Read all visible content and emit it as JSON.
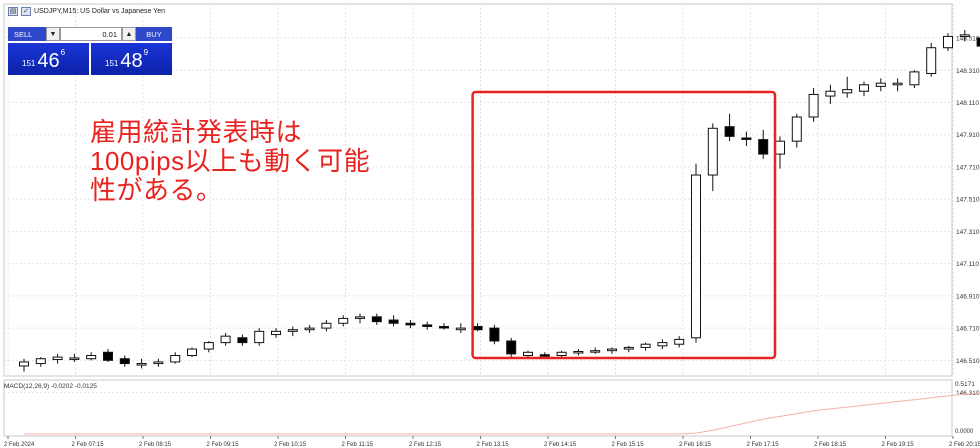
{
  "window": {
    "title": "USDJPY,M15:  US Dollar vs Japanese Yen"
  },
  "trade_panel": {
    "sell_label": "SELL",
    "buy_label": "BUY",
    "lot_value": "0.01",
    "dropdown_glyph": "▼",
    "up_glyph": "▲",
    "sell_price_prefix": "151",
    "sell_price_big": "46",
    "sell_price_sup": "6",
    "buy_price_prefix": "151",
    "buy_price_big": "48",
    "buy_price_sup": "9"
  },
  "annotation": {
    "text": "雇用統計発表時は\n100pips以上も動く可能\n性がある。",
    "color": "#e8231f"
  },
  "indicator": {
    "label": "MACD(12,26,9) -0.0202 -0.0125",
    "value_label": "0.5171",
    "zero_label": "0.0000"
  },
  "colors": {
    "bull_candle": "#ffffff",
    "bear_candle": "#000000",
    "highlight_box": "#e8231f",
    "grid": "#e4e4e4",
    "macd_signal": "#f2b3a8",
    "sell_bg": "#2f48c9",
    "price_box_bg": "#1a35d8"
  },
  "chart_data": {
    "type": "candlestick",
    "symbol": "USDJPY",
    "timeframe": "M15",
    "ylim": [
      146.45,
      148.56
    ],
    "y_ticks": [
      "148.510",
      "148.310",
      "148.110",
      "147.910",
      "147.710",
      "147.510",
      "147.310",
      "147.110",
      "146.910",
      "146.710",
      "146.510",
      "146.310"
    ],
    "x_ticks": [
      "2 Feb 2024",
      "2 Feb 07:15",
      "2 Feb 08:15",
      "2 Feb 09:15",
      "2 Feb 10:15",
      "2 Feb 11:15",
      "2 Feb 12:15",
      "2 Feb 13:15",
      "2 Feb 14:15",
      "2 Feb 15:15",
      "2 Feb 16:15",
      "2 Feb 17:15",
      "2 Feb 18:15",
      "2 Feb 19:15",
      "2 Feb 20:15"
    ],
    "candles": [
      {
        "o": 146.475,
        "h": 146.52,
        "l": 146.44,
        "c": 146.5
      },
      {
        "o": 146.49,
        "h": 146.53,
        "l": 146.47,
        "c": 146.52
      },
      {
        "o": 146.515,
        "h": 146.55,
        "l": 146.49,
        "c": 146.53
      },
      {
        "o": 146.52,
        "h": 146.55,
        "l": 146.5,
        "c": 146.525
      },
      {
        "o": 146.52,
        "h": 146.56,
        "l": 146.51,
        "c": 146.54
      },
      {
        "o": 146.56,
        "h": 146.58,
        "l": 146.5,
        "c": 146.51
      },
      {
        "o": 146.52,
        "h": 146.54,
        "l": 146.47,
        "c": 146.49
      },
      {
        "o": 146.49,
        "h": 146.52,
        "l": 146.46,
        "c": 146.49
      },
      {
        "o": 146.49,
        "h": 146.52,
        "l": 146.47,
        "c": 146.5
      },
      {
        "o": 146.5,
        "h": 146.56,
        "l": 146.49,
        "c": 146.54
      },
      {
        "o": 146.54,
        "h": 146.59,
        "l": 146.53,
        "c": 146.58
      },
      {
        "o": 146.58,
        "h": 146.63,
        "l": 146.56,
        "c": 146.62
      },
      {
        "o": 146.62,
        "h": 146.68,
        "l": 146.6,
        "c": 146.66
      },
      {
        "o": 146.65,
        "h": 146.67,
        "l": 146.6,
        "c": 146.62
      },
      {
        "o": 146.62,
        "h": 146.71,
        "l": 146.6,
        "c": 146.69
      },
      {
        "o": 146.67,
        "h": 146.71,
        "l": 146.65,
        "c": 146.69
      },
      {
        "o": 146.69,
        "h": 146.72,
        "l": 146.66,
        "c": 146.7
      },
      {
        "o": 146.7,
        "h": 146.73,
        "l": 146.68,
        "c": 146.71
      },
      {
        "o": 146.71,
        "h": 146.76,
        "l": 146.69,
        "c": 146.74
      },
      {
        "o": 146.74,
        "h": 146.79,
        "l": 146.72,
        "c": 146.77
      },
      {
        "o": 146.77,
        "h": 146.8,
        "l": 146.74,
        "c": 146.78
      },
      {
        "o": 146.78,
        "h": 146.8,
        "l": 146.73,
        "c": 146.75
      },
      {
        "o": 146.76,
        "h": 146.79,
        "l": 146.72,
        "c": 146.74
      },
      {
        "o": 146.74,
        "h": 146.76,
        "l": 146.71,
        "c": 146.73
      },
      {
        "o": 146.73,
        "h": 146.75,
        "l": 146.7,
        "c": 146.72
      },
      {
        "o": 146.72,
        "h": 146.74,
        "l": 146.7,
        "c": 146.715
      },
      {
        "o": 146.7,
        "h": 146.74,
        "l": 146.68,
        "c": 146.71
      },
      {
        "o": 146.72,
        "h": 146.74,
        "l": 146.69,
        "c": 146.7
      },
      {
        "o": 146.71,
        "h": 146.73,
        "l": 146.61,
        "c": 146.63
      },
      {
        "o": 146.63,
        "h": 146.65,
        "l": 146.53,
        "c": 146.55
      },
      {
        "o": 146.54,
        "h": 146.57,
        "l": 146.52,
        "c": 146.56
      },
      {
        "o": 146.545,
        "h": 146.56,
        "l": 146.52,
        "c": 146.535
      },
      {
        "o": 146.54,
        "h": 146.57,
        "l": 146.52,
        "c": 146.56
      },
      {
        "o": 146.56,
        "h": 146.58,
        "l": 146.54,
        "c": 146.565
      },
      {
        "o": 146.565,
        "h": 146.59,
        "l": 146.55,
        "c": 146.57
      },
      {
        "o": 146.57,
        "h": 146.59,
        "l": 146.55,
        "c": 146.58
      },
      {
        "o": 146.58,
        "h": 146.6,
        "l": 146.56,
        "c": 146.59
      },
      {
        "o": 146.59,
        "h": 146.62,
        "l": 146.57,
        "c": 146.61
      },
      {
        "o": 146.6,
        "h": 146.64,
        "l": 146.58,
        "c": 146.62
      },
      {
        "o": 146.61,
        "h": 146.66,
        "l": 146.59,
        "c": 146.64
      },
      {
        "o": 146.65,
        "h": 147.73,
        "l": 146.62,
        "c": 147.66
      },
      {
        "o": 147.66,
        "h": 147.98,
        "l": 147.56,
        "c": 147.95
      },
      {
        "o": 147.96,
        "h": 148.04,
        "l": 147.87,
        "c": 147.9
      },
      {
        "o": 147.89,
        "h": 147.93,
        "l": 147.84,
        "c": 147.885
      },
      {
        "o": 147.88,
        "h": 147.94,
        "l": 147.76,
        "c": 147.79
      },
      {
        "o": 147.79,
        "h": 147.9,
        "l": 147.7,
        "c": 147.87
      },
      {
        "o": 147.87,
        "h": 148.04,
        "l": 147.83,
        "c": 148.02
      },
      {
        "o": 148.02,
        "h": 148.2,
        "l": 147.99,
        "c": 148.16
      },
      {
        "o": 148.15,
        "h": 148.22,
        "l": 148.1,
        "c": 148.18
      },
      {
        "o": 148.17,
        "h": 148.27,
        "l": 148.14,
        "c": 148.19
      },
      {
        "o": 148.18,
        "h": 148.24,
        "l": 148.15,
        "c": 148.22
      },
      {
        "o": 148.21,
        "h": 148.26,
        "l": 148.18,
        "c": 148.23
      },
      {
        "o": 148.22,
        "h": 148.26,
        "l": 148.18,
        "c": 148.23
      },
      {
        "o": 148.22,
        "h": 148.31,
        "l": 148.2,
        "c": 148.3
      },
      {
        "o": 148.29,
        "h": 148.48,
        "l": 148.27,
        "c": 148.45
      },
      {
        "o": 148.45,
        "h": 148.54,
        "l": 148.43,
        "c": 148.52
      },
      {
        "o": 148.52,
        "h": 148.56,
        "l": 148.49,
        "c": 148.53
      },
      {
        "o": 148.51,
        "h": 148.52,
        "l": 148.45,
        "c": 148.46
      },
      {
        "o": 148.44,
        "h": 148.48,
        "l": 148.42,
        "c": 148.46
      },
      {
        "o": 148.45,
        "h": 148.53,
        "l": 148.43,
        "c": 148.51
      },
      {
        "o": 148.5,
        "h": 148.53,
        "l": 148.45,
        "c": 148.51
      },
      {
        "o": 148.49,
        "h": 148.5,
        "l": 148.38,
        "c": 148.4
      }
    ],
    "highlight": {
      "from_index": 27,
      "to_index": 45
    },
    "macd": {
      "label": "MACD(12,26,9) -0.0202 -0.0125",
      "signal": [
        0,
        0,
        0,
        0,
        0,
        0,
        0,
        0,
        0,
        0,
        0,
        0,
        0,
        0,
        0,
        0,
        0,
        0,
        0,
        0,
        0,
        0,
        0,
        0,
        0,
        0,
        0,
        0,
        0,
        0,
        0,
        0,
        0,
        0,
        0,
        0,
        0,
        0,
        0,
        0,
        0.01,
        0.04,
        0.08,
        0.12,
        0.16,
        0.19,
        0.22,
        0.25,
        0.27,
        0.29,
        0.31,
        0.33,
        0.35,
        0.37,
        0.39,
        0.41,
        0.43,
        0.44,
        0.45,
        0.46,
        0.47,
        0.48
      ],
      "ylim": [
        0,
        0.5171
      ]
    }
  }
}
